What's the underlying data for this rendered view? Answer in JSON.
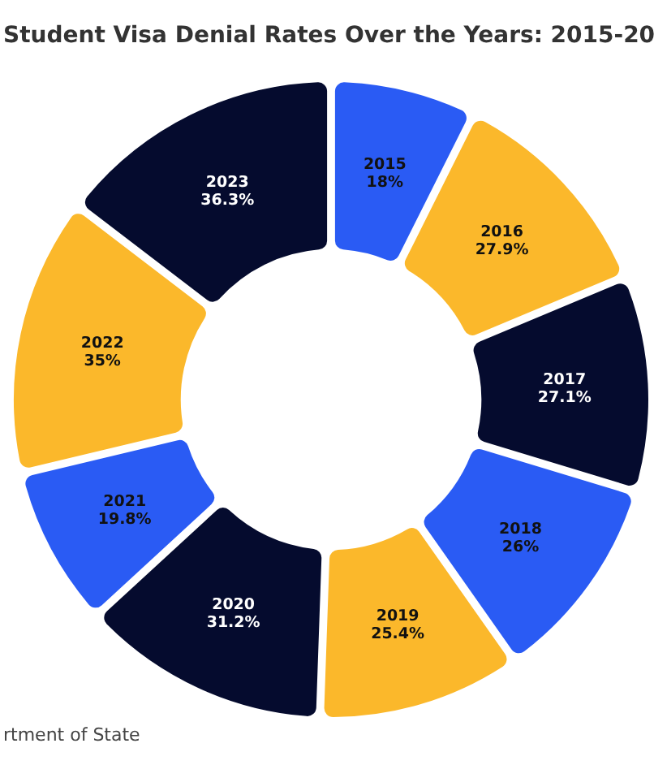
{
  "chart_data": {
    "type": "donut",
    "title": "Student Visa Denial Rates Over the Years: 2015-20",
    "annotations": [
      "rtment of State"
    ],
    "categories": [
      "2015",
      "2016",
      "2017",
      "2018",
      "2019",
      "2020",
      "2021",
      "2022",
      "2023"
    ],
    "values": [
      18,
      27.9,
      27.1,
      26,
      25.4,
      31.2,
      19.8,
      35,
      36.3
    ],
    "value_labels": [
      "18%",
      "27.9%",
      "27.1%",
      "26%",
      "25.4%",
      "31.2%",
      "19.8%",
      "35%",
      "36.3%"
    ],
    "colors": [
      "#2a5bf4",
      "#fbb82b",
      "#050b2e",
      "#2a5bf4",
      "#fbb82b",
      "#050b2e",
      "#2a5bf4",
      "#fbb82b",
      "#050b2e"
    ]
  }
}
